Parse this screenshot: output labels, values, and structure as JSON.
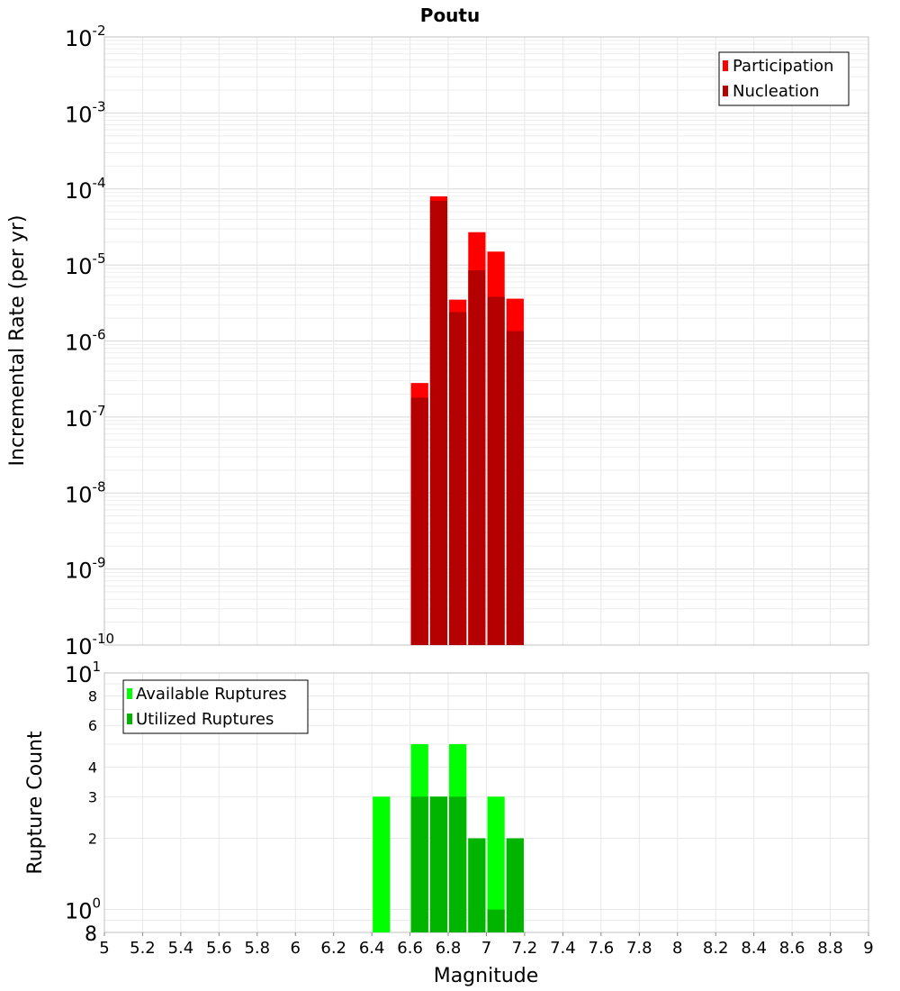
{
  "title": "Poutu",
  "xlabel": "Magnitude",
  "x_ticks": [
    "5",
    "5.2",
    "5.4",
    "5.6",
    "5.8",
    "6",
    "6.2",
    "6.4",
    "6.6",
    "6.8",
    "7",
    "7.2",
    "7.4",
    "7.6",
    "7.8",
    "8",
    "8.2",
    "8.4",
    "8.6",
    "8.8",
    "9"
  ],
  "chart_data": [
    {
      "type": "bar",
      "title": "Poutu",
      "xlabel": "Magnitude",
      "ylabel": "Incremental Rate (per yr)",
      "yscale": "log",
      "xlim": [
        5,
        9
      ],
      "ylim": [
        1e-10,
        0.01
      ],
      "bin_width": 0.1,
      "y_tick_labels": [
        {
          "base": "10",
          "exp": "-2"
        },
        {
          "base": "10",
          "exp": "-3"
        },
        {
          "base": "10",
          "exp": "-4"
        },
        {
          "base": "10",
          "exp": "-5"
        },
        {
          "base": "10",
          "exp": "-6"
        },
        {
          "base": "10",
          "exp": "-7"
        },
        {
          "base": "10",
          "exp": "-8"
        },
        {
          "base": "10",
          "exp": "-9"
        },
        {
          "base": "10",
          "exp": "-10"
        }
      ],
      "x": [
        6.65,
        6.75,
        6.85,
        6.95,
        7.05,
        7.15
      ],
      "series": [
        {
          "name": "Participation",
          "color": "#ff0000",
          "values": [
            2.8e-07,
            8e-05,
            3.5e-06,
            2.7e-05,
            1.5e-05,
            3.6e-06
          ]
        },
        {
          "name": "Nucleation",
          "color": "#b40000",
          "values": [
            1.8e-07,
            7e-05,
            2.4e-06,
            8.5e-06,
            3.8e-06,
            1.35e-06
          ]
        }
      ],
      "legend_position": "top-right"
    },
    {
      "type": "bar",
      "xlabel": "Magnitude",
      "ylabel": "Rupture Count",
      "yscale": "log",
      "xlim": [
        5,
        9
      ],
      "ylim": [
        0.8,
        10
      ],
      "bin_width": 0.1,
      "y_tick_labels": [
        {
          "value": 10,
          "base": "10",
          "exp": "1"
        },
        {
          "value": 8,
          "label": "8"
        },
        {
          "value": 6,
          "label": "6"
        },
        {
          "value": 4,
          "label": "4"
        },
        {
          "value": 3,
          "label": "3"
        },
        {
          "value": 2,
          "label": "2"
        },
        {
          "value": 1,
          "base": "10",
          "exp": "0"
        },
        {
          "value": 0.8,
          "label": "8"
        }
      ],
      "x": [
        6.45,
        6.65,
        6.75,
        6.85,
        6.95,
        7.05,
        7.15
      ],
      "series": [
        {
          "name": "Available Ruptures",
          "color": "#00ff00",
          "values": [
            3,
            5,
            3,
            5,
            2,
            3,
            2
          ]
        },
        {
          "name": "Utilized Ruptures",
          "color": "#00b400",
          "values": [
            0,
            3,
            3,
            3,
            2,
            1,
            2
          ]
        }
      ],
      "legend_position": "top-left"
    }
  ]
}
